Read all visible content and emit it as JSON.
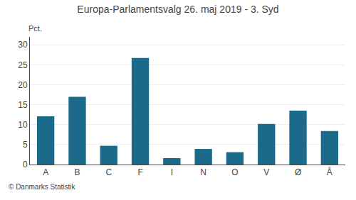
{
  "chart_data": {
    "type": "bar",
    "title": "Europa-Parlamentsvalg 26. maj 2019 - 3. Syd",
    "ylabel": "Pct.",
    "annotations": [
      "© Danmarks Statistik"
    ],
    "categories": [
      "A",
      "B",
      "C",
      "F",
      "I",
      "N",
      "O",
      "V",
      "Ø",
      "Å"
    ],
    "values": [
      12.1,
      17.0,
      4.7,
      26.7,
      1.6,
      3.9,
      3.1,
      10.2,
      13.5,
      8.4
    ],
    "color": "#1b6a8a",
    "ylim": [
      0,
      32
    ],
    "yticks": [
      0,
      5,
      10,
      15,
      20,
      25,
      30
    ],
    "grid": true
  }
}
